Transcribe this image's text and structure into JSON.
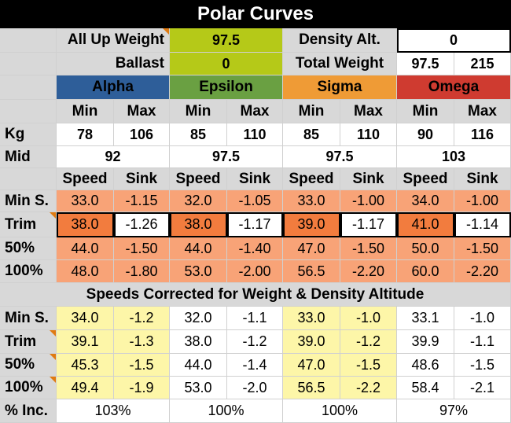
{
  "title": "Polar Curves",
  "colors": {
    "alpha": "#2e5e99",
    "epsilon": "#6aa042",
    "sigma": "#ef9b36",
    "omega": "#cf3b30",
    "weight_green": "#b5c918",
    "polar_light": "#f8a377",
    "polar_dark": "#f27c3e",
    "corrected_yellow": "#fdf6a8",
    "corrected_white": "#ffffff"
  },
  "top": {
    "auw_label": "All Up Weight",
    "auw_value": "97.5",
    "density_label": "Density Alt.",
    "density_value": "0",
    "ballast_label": "Ballast",
    "ballast_value": "0",
    "total_label": "Total Weight",
    "total_kg": "97.5",
    "total_lb": "215"
  },
  "gliders": [
    {
      "name": "Alpha",
      "min": "Min",
      "max": "Max",
      "kg_min": "78",
      "kg_max": "106",
      "mid": "92",
      "speed": "Speed",
      "sink": "Sink",
      "polar": [
        [
          "33.0",
          "-1.15"
        ],
        [
          "38.0",
          "-1.26"
        ],
        [
          "44.0",
          "-1.50"
        ],
        [
          "48.0",
          "-1.80"
        ]
      ],
      "corrected": [
        [
          "34.0",
          "-1.2"
        ],
        [
          "39.1",
          "-1.3"
        ],
        [
          "45.3",
          "-1.5"
        ],
        [
          "49.4",
          "-1.9"
        ]
      ],
      "inc": "103%"
    },
    {
      "name": "Epsilon",
      "min": "Min",
      "max": "Max",
      "kg_min": "85",
      "kg_max": "110",
      "mid": "97.5",
      "speed": "Speed",
      "sink": "Sink",
      "polar": [
        [
          "32.0",
          "-1.05"
        ],
        [
          "38.0",
          "-1.17"
        ],
        [
          "44.0",
          "-1.40"
        ],
        [
          "53.0",
          "-2.00"
        ]
      ],
      "corrected": [
        [
          "32.0",
          "-1.1"
        ],
        [
          "38.0",
          "-1.2"
        ],
        [
          "44.0",
          "-1.4"
        ],
        [
          "53.0",
          "-2.0"
        ]
      ],
      "inc": "100%"
    },
    {
      "name": "Sigma",
      "min": "Min",
      "max": "Max",
      "kg_min": "85",
      "kg_max": "110",
      "mid": "97.5",
      "speed": "Speed",
      "sink": "Sink",
      "polar": [
        [
          "33.0",
          "-1.00"
        ],
        [
          "39.0",
          "-1.17"
        ],
        [
          "47.0",
          "-1.50"
        ],
        [
          "56.5",
          "-2.20"
        ]
      ],
      "corrected": [
        [
          "33.0",
          "-1.0"
        ],
        [
          "39.0",
          "-1.2"
        ],
        [
          "47.0",
          "-1.5"
        ],
        [
          "56.5",
          "-2.2"
        ]
      ],
      "inc": "100%"
    },
    {
      "name": "Omega",
      "min": "Min",
      "max": "Max",
      "kg_min": "90",
      "kg_max": "116",
      "mid": "103",
      "speed": "Speed",
      "sink": "Sink",
      "polar": [
        [
          "34.0",
          "-1.00"
        ],
        [
          "41.0",
          "-1.14"
        ],
        [
          "50.0",
          "-1.50"
        ],
        [
          "60.0",
          "-2.20"
        ]
      ],
      "corrected": [
        [
          "33.1",
          "-1.0"
        ],
        [
          "39.9",
          "-1.1"
        ],
        [
          "48.6",
          "-1.5"
        ],
        [
          "58.4",
          "-2.1"
        ]
      ],
      "inc": "97%"
    }
  ],
  "row_labels": {
    "kg": "Kg",
    "mid": "Mid",
    "polar": [
      "Min S.",
      "Trim",
      "50%",
      "100%"
    ],
    "corrected": [
      "Min S.",
      "Trim",
      "50%",
      "100%"
    ],
    "inc": "% Inc."
  },
  "corrected_header": "Speeds Corrected for Weight & Density Altitude"
}
